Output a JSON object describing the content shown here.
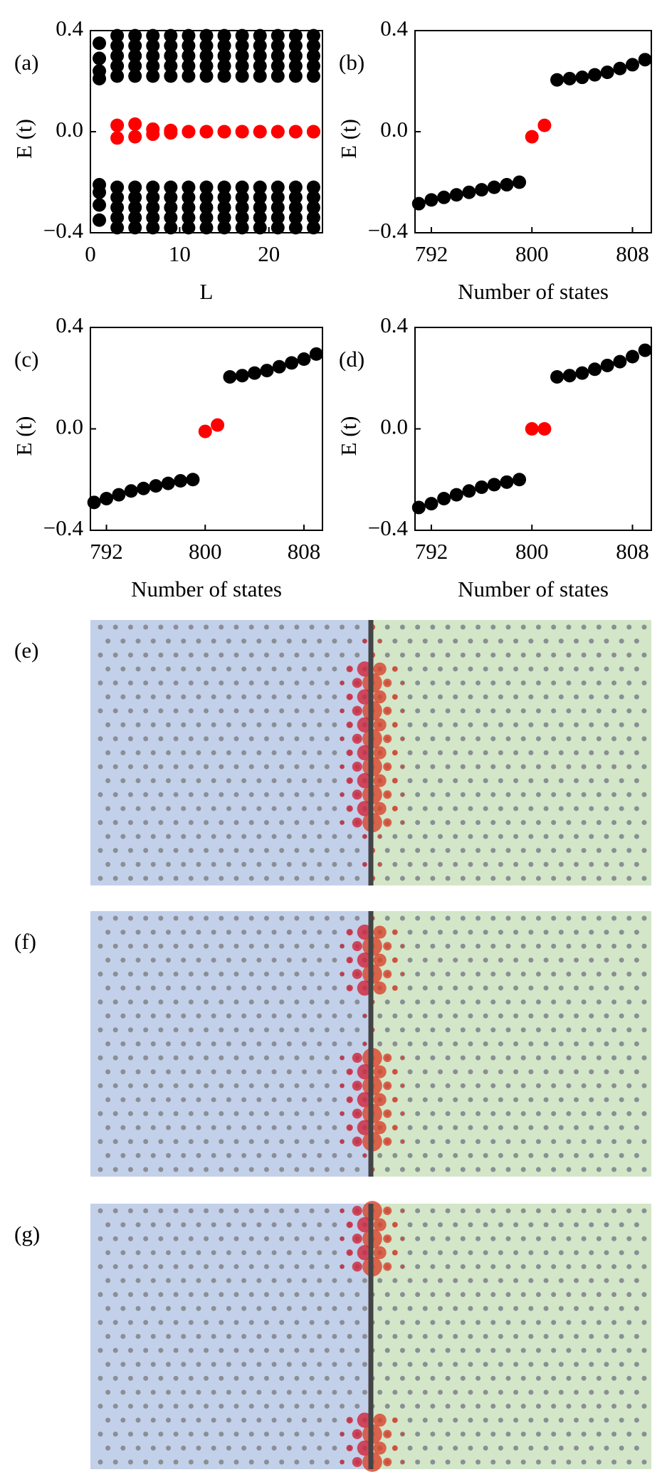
{
  "chart_data": [
    {
      "type": "scatter",
      "label": "(a)",
      "ylabel": "E (t)",
      "xlabel": "L",
      "x": [
        1,
        3,
        5,
        7,
        9,
        11,
        13,
        15,
        17,
        19,
        21,
        23,
        25
      ],
      "xlim": [
        0,
        26
      ],
      "ylim": [
        -0.4,
        0.4
      ],
      "xticks": [
        0,
        10,
        20
      ],
      "yticks": [
        {
          "value": -0.4,
          "label": "−0.4"
        },
        {
          "value": 0,
          "label": "0.0"
        },
        0.4
      ],
      "series": [
        {
          "color": "#000000",
          "values": [
            0.35,
            0.38,
            0.38,
            0.38,
            0.38,
            0.38,
            0.38,
            0.38,
            0.38,
            0.38,
            0.38,
            0.38,
            0.38
          ]
        },
        {
          "color": "#000000",
          "values": [
            0.29,
            0.34,
            0.34,
            0.34,
            0.34,
            0.34,
            0.34,
            0.34,
            0.34,
            0.34,
            0.34,
            0.34,
            0.34
          ]
        },
        {
          "color": "#000000",
          "values": [
            0.24,
            0.3,
            0.3,
            0.3,
            0.3,
            0.3,
            0.3,
            0.3,
            0.3,
            0.3,
            0.3,
            0.3,
            0.3
          ]
        },
        {
          "color": "#000000",
          "values": [
            0.21,
            0.26,
            0.26,
            0.26,
            0.26,
            0.26,
            0.26,
            0.26,
            0.26,
            0.26,
            0.26,
            0.26,
            0.26
          ]
        },
        {
          "color": "#000000",
          "values": [
            null,
            0.22,
            0.22,
            0.22,
            0.22,
            0.22,
            0.22,
            0.22,
            0.22,
            0.22,
            0.22,
            0.22,
            0.22
          ]
        },
        {
          "color": "#000000",
          "values": [
            -0.35,
            -0.38,
            -0.38,
            -0.38,
            -0.38,
            -0.38,
            -0.38,
            -0.38,
            -0.38,
            -0.38,
            -0.38,
            -0.38,
            -0.38
          ]
        },
        {
          "color": "#000000",
          "values": [
            -0.29,
            -0.34,
            -0.34,
            -0.34,
            -0.34,
            -0.34,
            -0.34,
            -0.34,
            -0.34,
            -0.34,
            -0.34,
            -0.34,
            -0.34
          ]
        },
        {
          "color": "#000000",
          "values": [
            -0.24,
            -0.3,
            -0.3,
            -0.3,
            -0.3,
            -0.3,
            -0.3,
            -0.3,
            -0.3,
            -0.3,
            -0.3,
            -0.3,
            -0.3
          ]
        },
        {
          "color": "#000000",
          "values": [
            -0.21,
            -0.26,
            -0.26,
            -0.26,
            -0.26,
            -0.26,
            -0.26,
            -0.26,
            -0.26,
            -0.26,
            -0.26,
            -0.26,
            -0.26
          ]
        },
        {
          "color": "#000000",
          "values": [
            null,
            -0.22,
            -0.22,
            -0.22,
            -0.22,
            -0.22,
            -0.22,
            -0.22,
            -0.22,
            -0.22,
            -0.22,
            -0.22,
            -0.22
          ]
        },
        {
          "color": "#ff0000",
          "values": [
            null,
            0.025,
            0.03,
            0.01,
            0.005,
            0,
            0,
            0,
            0,
            0,
            0,
            0,
            0
          ]
        },
        {
          "color": "#ff0000",
          "values": [
            null,
            -0.025,
            -0.02,
            -0.01,
            -0.005,
            0,
            0,
            0,
            0,
            0,
            0,
            0,
            0
          ]
        }
      ]
    },
    {
      "type": "scatter",
      "label": "(b)",
      "ylabel": "E (t)",
      "xlabel": "Number of states",
      "x": [
        791,
        792,
        793,
        794,
        795,
        796,
        797,
        798,
        799,
        800,
        801,
        802,
        803,
        804,
        805,
        806,
        807,
        808,
        809
      ],
      "xlim": [
        790.7,
        809.5
      ],
      "ylim": [
        -0.4,
        0.4
      ],
      "xticks": [
        792,
        800,
        808
      ],
      "yticks": [
        {
          "value": -0.4,
          "label": "−0.4"
        },
        {
          "value": 0,
          "label": "0.0"
        },
        0.4
      ],
      "series": [
        {
          "color": "#000000",
          "values": [
            -0.285,
            -0.27,
            -0.26,
            -0.25,
            -0.24,
            -0.23,
            -0.22,
            -0.21,
            -0.2,
            null,
            null,
            0.205,
            0.21,
            0.215,
            0.225,
            0.235,
            0.25,
            0.265,
            0.285
          ]
        },
        {
          "color": "#ff0000",
          "values": [
            null,
            null,
            null,
            null,
            null,
            null,
            null,
            null,
            null,
            -0.02,
            0.025,
            null,
            null,
            null,
            null,
            null,
            null,
            null,
            null
          ]
        }
      ]
    },
    {
      "type": "scatter",
      "label": "(c)",
      "ylabel": "E (t)",
      "xlabel": "Number of states",
      "x": [
        791,
        792,
        793,
        794,
        795,
        796,
        797,
        798,
        799,
        800,
        801,
        802,
        803,
        804,
        805,
        806,
        807,
        808,
        809
      ],
      "xlim": [
        790.7,
        809.5
      ],
      "ylim": [
        -0.4,
        0.4
      ],
      "xticks": [
        792,
        800,
        808
      ],
      "yticks": [
        {
          "value": -0.4,
          "label": "−0.4"
        },
        {
          "value": 0,
          "label": "0.0"
        },
        0.4
      ],
      "series": [
        {
          "color": "#000000",
          "values": [
            -0.29,
            -0.275,
            -0.26,
            -0.245,
            -0.235,
            -0.225,
            -0.215,
            -0.205,
            -0.2,
            null,
            null,
            0.205,
            0.21,
            0.22,
            0.23,
            0.245,
            0.26,
            0.275,
            0.295
          ]
        },
        {
          "color": "#ff0000",
          "values": [
            null,
            null,
            null,
            null,
            null,
            null,
            null,
            null,
            null,
            -0.01,
            0.015,
            null,
            null,
            null,
            null,
            null,
            null,
            null,
            null
          ]
        }
      ]
    },
    {
      "type": "scatter",
      "label": "(d)",
      "ylabel": "E (t)",
      "xlabel": "Number of states",
      "x": [
        791,
        792,
        793,
        794,
        795,
        796,
        797,
        798,
        799,
        800,
        801,
        802,
        803,
        804,
        805,
        806,
        807,
        808,
        809
      ],
      "xlim": [
        790.7,
        809.5
      ],
      "ylim": [
        -0.4,
        0.4
      ],
      "xticks": [
        792,
        800,
        808
      ],
      "yticks": [
        {
          "value": -0.4,
          "label": "−0.4"
        },
        {
          "value": 0,
          "label": "0.0"
        },
        0.4
      ],
      "series": [
        {
          "color": "#000000",
          "values": [
            -0.31,
            -0.295,
            -0.275,
            -0.26,
            -0.245,
            -0.23,
            -0.22,
            -0.21,
            -0.2,
            null,
            null,
            0.205,
            0.21,
            0.22,
            0.235,
            0.25,
            0.265,
            0.285,
            0.31
          ]
        },
        {
          "color": "#ff0000",
          "values": [
            null,
            null,
            null,
            null,
            null,
            null,
            null,
            null,
            null,
            0,
            0,
            null,
            null,
            null,
            null,
            null,
            null,
            null,
            null
          ]
        }
      ]
    },
    {
      "type": "lattice",
      "label": "(e)"
    },
    {
      "type": "lattice",
      "label": "(f)"
    },
    {
      "type": "lattice",
      "label": "(g)"
    }
  ]
}
